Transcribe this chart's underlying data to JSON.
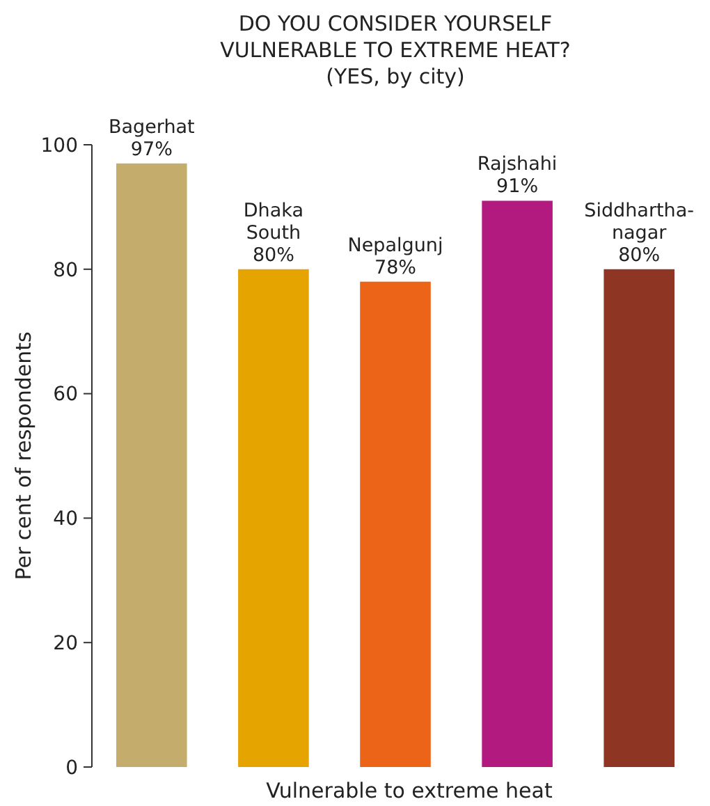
{
  "chart_data": {
    "type": "bar",
    "title": "DO YOU CONSIDER YOURSELF VULNERABLE TO EXTREME HEAT?",
    "subtitle": "(YES, by city)",
    "xlabel": "Vulnerable to extreme heat",
    "ylabel": "Per cent of respondents",
    "categories": [
      "Bagerhat",
      "Dhaka South",
      "Nepalgunj",
      "Rajshahi",
      "Siddhartha-nagar"
    ],
    "values": [
      97,
      80,
      78,
      91,
      80
    ],
    "colors": [
      "#c4ac6c",
      "#e5a400",
      "#ec6418",
      "#b21a80",
      "#8e3524"
    ],
    "value_labels": [
      "97%",
      "80%",
      "78%",
      "91%",
      "80%"
    ],
    "ylim": [
      0,
      100
    ],
    "yticks": [
      0,
      20,
      40,
      60,
      80,
      100
    ],
    "grid": false
  }
}
